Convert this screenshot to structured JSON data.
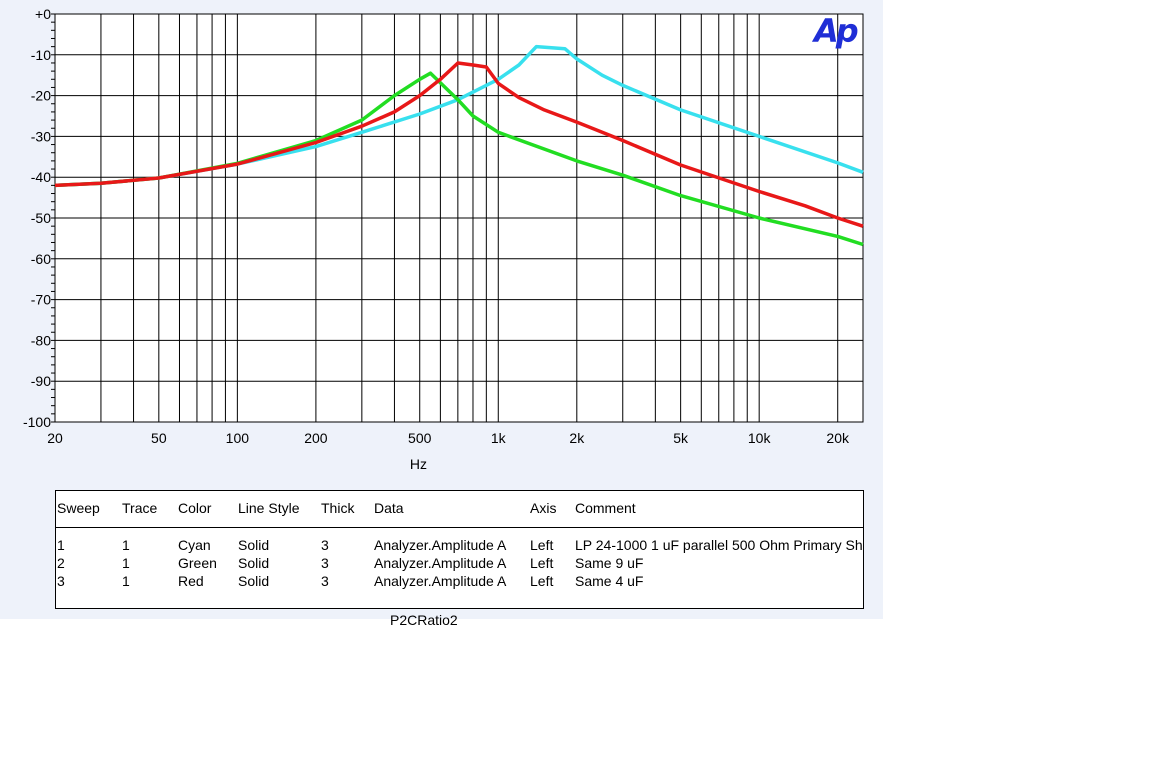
{
  "logo": {
    "text": "Ap",
    "color": "#1f2ed6"
  },
  "chart_data": {
    "type": "line",
    "xlabel": "Hz",
    "ylabel": "",
    "x_scale": "log",
    "xlim": [
      20,
      25000
    ],
    "ylim": [
      -100,
      0
    ],
    "grid": true,
    "y_ticks": [
      "+0",
      "-10",
      "-20",
      "-30",
      "-40",
      "-50",
      "-60",
      "-70",
      "-80",
      "-90",
      "-100"
    ],
    "y_tick_values": [
      0,
      -10,
      -20,
      -30,
      -40,
      -50,
      -60,
      -70,
      -80,
      -90,
      -100
    ],
    "x_ticks": [
      "20",
      "50",
      "100",
      "200",
      "500",
      "1k",
      "2k",
      "5k",
      "10k",
      "20k"
    ],
    "x_tick_values": [
      20,
      50,
      100,
      200,
      500,
      1000,
      2000,
      5000,
      10000,
      20000
    ],
    "series": [
      {
        "color": "#38e0ee",
        "x": [
          20,
          30,
          50,
          100,
          200,
          300,
          500,
          700,
          1000,
          1200,
          1400,
          1800,
          2000,
          2500,
          3000,
          5000,
          10000,
          20000,
          25000
        ],
        "y": [
          -42,
          -41.5,
          -40.2,
          -36.8,
          -32.5,
          -29,
          -24.5,
          -21,
          -16,
          -12.5,
          -8,
          -8.5,
          -11,
          -15,
          -17.5,
          -23.5,
          -30,
          -36.5,
          -38.8
        ]
      },
      {
        "color": "#22dd22",
        "x": [
          20,
          30,
          50,
          100,
          200,
          300,
          400,
          500,
          550,
          700,
          800,
          1000,
          2000,
          3000,
          5000,
          10000,
          20000,
          25000
        ],
        "y": [
          -42,
          -41.5,
          -40.2,
          -36.6,
          -31,
          -26,
          -20,
          -16,
          -14.5,
          -21,
          -25,
          -29,
          -36,
          -39.5,
          -44.5,
          -50,
          -54.5,
          -56.5
        ]
      },
      {
        "color": "#e81818",
        "x": [
          20,
          30,
          50,
          100,
          200,
          300,
          400,
          500,
          600,
          700,
          800,
          900,
          1000,
          1200,
          1500,
          2000,
          3000,
          5000,
          10000,
          15000,
          20000,
          25000
        ],
        "y": [
          -42,
          -41.5,
          -40.2,
          -36.8,
          -31.5,
          -27.5,
          -24,
          -20,
          -16,
          -12,
          -12.5,
          -13,
          -17,
          -20.5,
          -23.5,
          -26.5,
          -31,
          -37,
          -43.5,
          -47,
          -50,
          -52
        ]
      }
    ]
  },
  "table": {
    "headers": [
      "Sweep",
      "Trace",
      "Color",
      "Line Style",
      "Thick",
      "Data",
      "Axis",
      "Comment"
    ],
    "rows": [
      [
        "1",
        "1",
        "Cyan",
        "Solid",
        "3",
        "Analyzer.Amplitude A",
        "Left",
        "LP 24-1000 1 uF parallel 500 Ohm Primary Sh"
      ],
      [
        "2",
        "1",
        "Green",
        "Solid",
        "3",
        "Analyzer.Amplitude A",
        "Left",
        "Same 9 uF"
      ],
      [
        "3",
        "1",
        "Red",
        "Solid",
        "3",
        "Analyzer.Amplitude A",
        "Left",
        "Same 4 uF"
      ]
    ]
  },
  "footer": {
    "text": "P2CRatio2"
  }
}
